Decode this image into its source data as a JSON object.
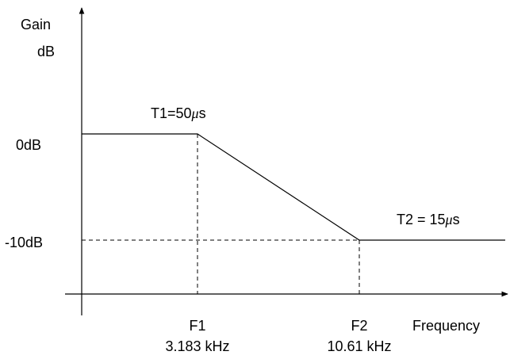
{
  "chart_data": {
    "type": "line",
    "title": "",
    "ylabel_lines": [
      "Gain",
      "dB"
    ],
    "xlabel": "Frequency",
    "y_ticks": [
      {
        "value": 0,
        "label": "0dB"
      },
      {
        "value": -10,
        "label": "-10dB"
      }
    ],
    "x_ticks": [
      {
        "id": "f1",
        "name": "F1",
        "freq_label": "3.183 kHz"
      },
      {
        "id": "f2",
        "name": "F2",
        "freq_label": "10.61 kHz"
      }
    ],
    "series": [
      {
        "points": [
          {
            "x": "start",
            "y": 0
          },
          {
            "x": "F1",
            "y": 0
          },
          {
            "x": "F2",
            "y": -10
          },
          {
            "x": "end",
            "y": -10
          }
        ]
      }
    ],
    "annotations": [
      {
        "id": "t1",
        "prefix": "T1=50",
        "mu": "μ",
        "suffix": "s"
      },
      {
        "id": "t2",
        "prefix": "T2 = 15",
        "mu": "μ",
        "suffix": "s"
      }
    ],
    "grid": false,
    "guides": "dashed",
    "colors": {
      "line": "#000000",
      "axis": "#000000",
      "background": "#ffffff"
    }
  }
}
